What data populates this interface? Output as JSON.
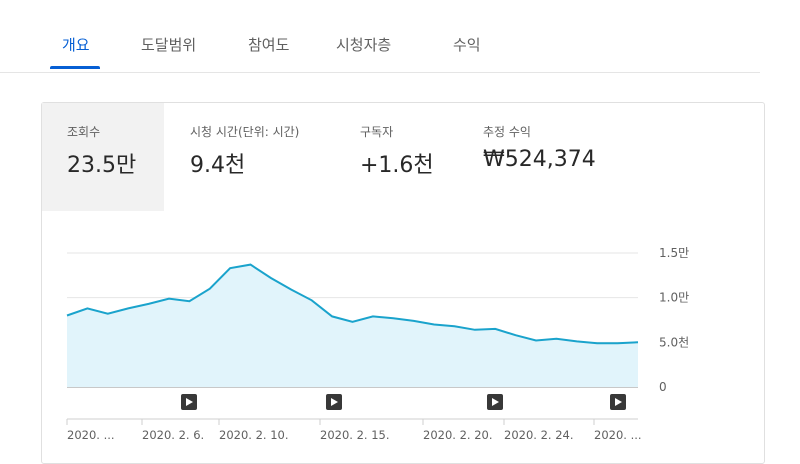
{
  "tabs": [
    {
      "label": "개요",
      "active": true
    },
    {
      "label": "도달범위",
      "active": false
    },
    {
      "label": "참여도",
      "active": false
    },
    {
      "label": "시청자층",
      "active": false
    },
    {
      "label": "수익",
      "active": false
    }
  ],
  "metrics": [
    {
      "label": "조회수",
      "value": "23.5만",
      "selected": true
    },
    {
      "label": "시청 시간(단위: 시간)",
      "value": "9.4천",
      "selected": false
    },
    {
      "label": "구독자",
      "value": "+1.6천",
      "selected": false
    },
    {
      "label": "추정 수익",
      "value": "₩524,374",
      "selected": false
    }
  ],
  "colors": {
    "accent": "#065fd4",
    "line": "#1aa3cc",
    "fill": "#e1f4fb"
  },
  "chart_data": {
    "type": "area",
    "y_ticks": [
      {
        "value": 15000,
        "label": "1.5만"
      },
      {
        "value": 10000,
        "label": "1.0만"
      },
      {
        "value": 5000,
        "label": "5.0천"
      },
      {
        "value": 0,
        "label": "0"
      }
    ],
    "ylim": [
      0,
      15000
    ],
    "x_labels": [
      "2020. ...",
      "2020. 2. 6.",
      "2020. 2. 10.",
      "2020. 2. 15.",
      "2020. 2. 20.",
      "2020. 2. 24.",
      "2020. ..."
    ],
    "series": [
      {
        "values": [
          8000,
          8800,
          8200,
          8800,
          9300,
          9900,
          9600,
          11000,
          13300,
          13700,
          12200,
          10900,
          9700,
          7900,
          7300,
          7900,
          7700,
          7400,
          7000,
          6800,
          6400,
          6500,
          5800,
          5200,
          5400,
          5100,
          4900,
          4900,
          5000
        ]
      }
    ],
    "video_markers": 4,
    "grid": true
  }
}
